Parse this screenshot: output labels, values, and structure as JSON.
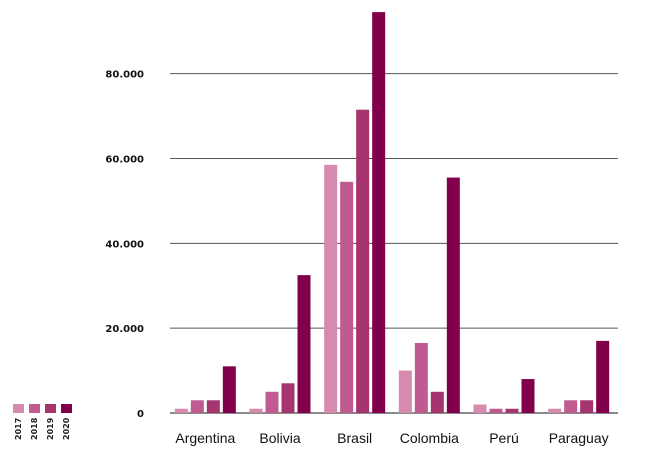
{
  "chart_data": {
    "type": "bar",
    "categories": [
      "Argentina",
      "Bolivia",
      "Brasil",
      "Colombia",
      "Perú",
      "Paraguay"
    ],
    "series": [
      {
        "name": "2017",
        "color": "#d58aae",
        "values": [
          1000,
          1000,
          58500,
          10000,
          2000,
          1000
        ]
      },
      {
        "name": "2018",
        "color": "#c05b92",
        "values": [
          3000,
          5000,
          54500,
          16500,
          1000,
          3000
        ]
      },
      {
        "name": "2019",
        "color": "#a5346f",
        "values": [
          3000,
          7000,
          71500,
          5000,
          1000,
          3000
        ]
      },
      {
        "name": "2020",
        "color": "#82004b",
        "values": [
          11000,
          32500,
          94500,
          55500,
          8000,
          17000
        ]
      }
    ],
    "yticks": [
      0,
      20000,
      40000,
      60000,
      80000
    ],
    "ytick_labels": [
      "0",
      "20.000",
      "40.000",
      "60.000",
      "80.000"
    ],
    "ylim": [
      0,
      95000
    ],
    "grid": true,
    "legend_position": "bottom-left"
  }
}
